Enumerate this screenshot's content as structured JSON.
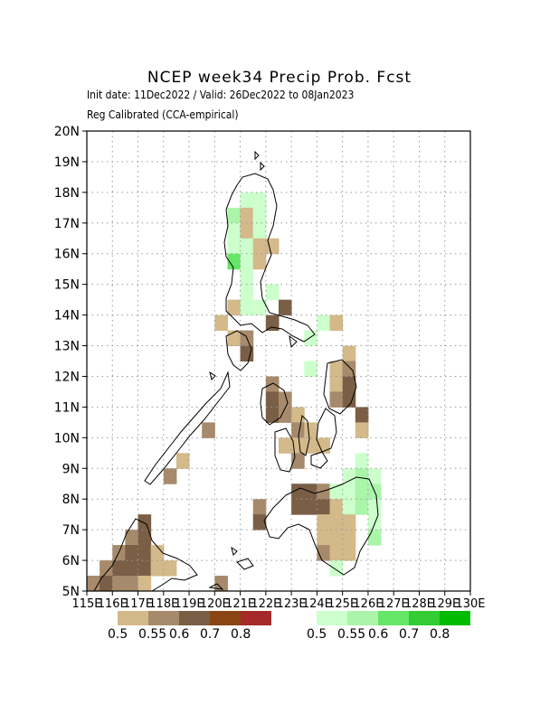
{
  "title": "NCEP week34 Precip Prob. Fcst",
  "subtitle1": "Init date: 11Dec2022 / Valid: 26Dec2022 to 08Jan2023",
  "subtitle2": "Reg Calibrated (CCA-empirical)",
  "chart_data": {
    "type": "heatmap",
    "title": "NCEP week34 Precip Prob. Fcst",
    "xlim": [
      115,
      130
    ],
    "ylim": [
      5,
      20
    ],
    "x_ticks": [
      "115E",
      "116E",
      "117E",
      "118E",
      "119E",
      "120E",
      "121E",
      "122E",
      "123E",
      "124E",
      "125E",
      "126E",
      "127E",
      "128E",
      "129E",
      "130E"
    ],
    "y_ticks": [
      "5N",
      "6N",
      "7N",
      "8N",
      "9N",
      "10N",
      "11N",
      "12N",
      "13N",
      "14N",
      "15N",
      "16N",
      "17N",
      "18N",
      "19N",
      "20N"
    ],
    "grid": true,
    "cell_size_deg": 0.5,
    "categories": {
      "d1": "below 0.5",
      "d2": "below 0.55",
      "d3": "below 0.6",
      "w1": "above 0.5",
      "w2": "above 0.55",
      "w3": "above 0.6"
    },
    "cells": [
      {
        "lon": 121.0,
        "lat": 17.5,
        "cat": "w1"
      },
      {
        "lon": 121.5,
        "lat": 17.5,
        "cat": "w1"
      },
      {
        "lon": 120.5,
        "lat": 17.0,
        "cat": "w2"
      },
      {
        "lon": 121.0,
        "lat": 17.0,
        "cat": "d1"
      },
      {
        "lon": 121.5,
        "lat": 17.0,
        "cat": "w1"
      },
      {
        "lon": 120.5,
        "lat": 16.5,
        "cat": "w1"
      },
      {
        "lon": 121.0,
        "lat": 16.5,
        "cat": "d1"
      },
      {
        "lon": 121.5,
        "lat": 16.5,
        "cat": "w1"
      },
      {
        "lon": 120.5,
        "lat": 16.0,
        "cat": "w1"
      },
      {
        "lon": 121.0,
        "lat": 16.0,
        "cat": "w1"
      },
      {
        "lon": 121.5,
        "lat": 16.0,
        "cat": "d1"
      },
      {
        "lon": 122.0,
        "lat": 16.0,
        "cat": "d1"
      },
      {
        "lon": 120.5,
        "lat": 15.5,
        "cat": "w3"
      },
      {
        "lon": 121.0,
        "lat": 15.5,
        "cat": "w1"
      },
      {
        "lon": 121.5,
        "lat": 15.5,
        "cat": "d1"
      },
      {
        "lon": 121.0,
        "lat": 15.0,
        "cat": "w1"
      },
      {
        "lon": 121.0,
        "lat": 14.5,
        "cat": "w1"
      },
      {
        "lon": 122.0,
        "lat": 14.5,
        "cat": "w1"
      },
      {
        "lon": 120.5,
        "lat": 14.0,
        "cat": "d1"
      },
      {
        "lon": 121.0,
        "lat": 14.0,
        "cat": "w1"
      },
      {
        "lon": 121.5,
        "lat": 14.0,
        "cat": "w1"
      },
      {
        "lon": 122.5,
        "lat": 14.0,
        "cat": "d3"
      },
      {
        "lon": 120.0,
        "lat": 13.5,
        "cat": "d1"
      },
      {
        "lon": 122.0,
        "lat": 13.5,
        "cat": "d3"
      },
      {
        "lon": 124.0,
        "lat": 13.5,
        "cat": "w1"
      },
      {
        "lon": 124.5,
        "lat": 13.5,
        "cat": "d1"
      },
      {
        "lon": 120.5,
        "lat": 13.0,
        "cat": "d1"
      },
      {
        "lon": 121.0,
        "lat": 13.0,
        "cat": "d2"
      },
      {
        "lon": 123.5,
        "lat": 13.0,
        "cat": "w1"
      },
      {
        "lon": 121.0,
        "lat": 12.5,
        "cat": "d3"
      },
      {
        "lon": 125.0,
        "lat": 12.5,
        "cat": "d1"
      },
      {
        "lon": 123.5,
        "lat": 12.0,
        "cat": "w1"
      },
      {
        "lon": 124.5,
        "lat": 12.0,
        "cat": "d1"
      },
      {
        "lon": 125.0,
        "lat": 12.0,
        "cat": "d2"
      },
      {
        "lon": 122.0,
        "lat": 11.5,
        "cat": "d2"
      },
      {
        "lon": 124.5,
        "lat": 11.5,
        "cat": "d1"
      },
      {
        "lon": 125.0,
        "lat": 11.5,
        "cat": "d3"
      },
      {
        "lon": 122.0,
        "lat": 11.0,
        "cat": "d3"
      },
      {
        "lon": 122.5,
        "lat": 11.0,
        "cat": "d2"
      },
      {
        "lon": 124.5,
        "lat": 11.0,
        "cat": "d2"
      },
      {
        "lon": 125.0,
        "lat": 11.0,
        "cat": "d3"
      },
      {
        "lon": 122.0,
        "lat": 10.5,
        "cat": "d3"
      },
      {
        "lon": 122.5,
        "lat": 10.5,
        "cat": "d2"
      },
      {
        "lon": 123.0,
        "lat": 10.5,
        "cat": "d1"
      },
      {
        "lon": 125.5,
        "lat": 10.5,
        "cat": "d3"
      },
      {
        "lon": 119.5,
        "lat": 10.0,
        "cat": "d2"
      },
      {
        "lon": 123.0,
        "lat": 10.0,
        "cat": "d2"
      },
      {
        "lon": 123.5,
        "lat": 10.0,
        "cat": "d1"
      },
      {
        "lon": 125.5,
        "lat": 10.0,
        "cat": "d1"
      },
      {
        "lon": 122.5,
        "lat": 9.5,
        "cat": "d1"
      },
      {
        "lon": 123.0,
        "lat": 9.5,
        "cat": "d1"
      },
      {
        "lon": 123.5,
        "lat": 9.5,
        "cat": "d1"
      },
      {
        "lon": 124.0,
        "lat": 9.5,
        "cat": "d1"
      },
      {
        "lon": 118.5,
        "lat": 9.0,
        "cat": "d1"
      },
      {
        "lon": 123.0,
        "lat": 9.0,
        "cat": "d2"
      },
      {
        "lon": 125.5,
        "lat": 9.0,
        "cat": "w1"
      },
      {
        "lon": 118.0,
        "lat": 8.5,
        "cat": "d2"
      },
      {
        "lon": 125.0,
        "lat": 8.5,
        "cat": "w1"
      },
      {
        "lon": 125.5,
        "lat": 8.5,
        "cat": "w2"
      },
      {
        "lon": 126.0,
        "lat": 8.5,
        "cat": "w1"
      },
      {
        "lon": 123.0,
        "lat": 8.0,
        "cat": "d3"
      },
      {
        "lon": 123.5,
        "lat": 8.0,
        "cat": "d3"
      },
      {
        "lon": 124.0,
        "lat": 8.0,
        "cat": "d2"
      },
      {
        "lon": 124.5,
        "lat": 8.0,
        "cat": "w1"
      },
      {
        "lon": 125.0,
        "lat": 8.0,
        "cat": "w1"
      },
      {
        "lon": 125.5,
        "lat": 8.0,
        "cat": "w2"
      },
      {
        "lon": 126.0,
        "lat": 8.0,
        "cat": "w2"
      },
      {
        "lon": 121.5,
        "lat": 7.5,
        "cat": "d2"
      },
      {
        "lon": 123.0,
        "lat": 7.5,
        "cat": "d3"
      },
      {
        "lon": 123.5,
        "lat": 7.5,
        "cat": "d3"
      },
      {
        "lon": 124.0,
        "lat": 7.5,
        "cat": "d3"
      },
      {
        "lon": 124.5,
        "lat": 7.5,
        "cat": "d1"
      },
      {
        "lon": 125.0,
        "lat": 7.5,
        "cat": "w1"
      },
      {
        "lon": 125.5,
        "lat": 7.5,
        "cat": "w2"
      },
      {
        "lon": 126.0,
        "lat": 7.5,
        "cat": "w1"
      },
      {
        "lon": 117.0,
        "lat": 7.0,
        "cat": "d3"
      },
      {
        "lon": 121.5,
        "lat": 7.0,
        "cat": "d3"
      },
      {
        "lon": 124.0,
        "lat": 7.0,
        "cat": "d1"
      },
      {
        "lon": 124.5,
        "lat": 7.0,
        "cat": "d1"
      },
      {
        "lon": 125.0,
        "lat": 7.0,
        "cat": "d1"
      },
      {
        "lon": 126.0,
        "lat": 7.0,
        "cat": "w1"
      },
      {
        "lon": 116.5,
        "lat": 6.5,
        "cat": "d2"
      },
      {
        "lon": 117.0,
        "lat": 6.5,
        "cat": "d3"
      },
      {
        "lon": 124.0,
        "lat": 6.5,
        "cat": "d1"
      },
      {
        "lon": 124.5,
        "lat": 6.5,
        "cat": "d1"
      },
      {
        "lon": 125.0,
        "lat": 6.5,
        "cat": "d1"
      },
      {
        "lon": 126.0,
        "lat": 6.5,
        "cat": "w2"
      },
      {
        "lon": 116.0,
        "lat": 6.0,
        "cat": "d2"
      },
      {
        "lon": 116.5,
        "lat": 6.0,
        "cat": "d3"
      },
      {
        "lon": 117.0,
        "lat": 6.0,
        "cat": "d3"
      },
      {
        "lon": 117.5,
        "lat": 6.0,
        "cat": "d1"
      },
      {
        "lon": 124.0,
        "lat": 6.0,
        "cat": "d2"
      },
      {
        "lon": 124.5,
        "lat": 6.0,
        "cat": "d1"
      },
      {
        "lon": 125.0,
        "lat": 6.0,
        "cat": "d1"
      },
      {
        "lon": 115.5,
        "lat": 5.5,
        "cat": "d2"
      },
      {
        "lon": 116.0,
        "lat": 5.5,
        "cat": "d3"
      },
      {
        "lon": 116.5,
        "lat": 5.5,
        "cat": "d3"
      },
      {
        "lon": 117.0,
        "lat": 5.5,
        "cat": "d3"
      },
      {
        "lon": 117.5,
        "lat": 5.5,
        "cat": "d1"
      },
      {
        "lon": 118.0,
        "lat": 5.5,
        "cat": "d1"
      },
      {
        "lon": 124.5,
        "lat": 5.5,
        "cat": "w1"
      },
      {
        "lon": 115.0,
        "lat": 5.0,
        "cat": "d2"
      },
      {
        "lon": 115.5,
        "lat": 5.0,
        "cat": "d3"
      },
      {
        "lon": 116.0,
        "lat": 5.0,
        "cat": "d2"
      },
      {
        "lon": 116.5,
        "lat": 5.0,
        "cat": "d2"
      },
      {
        "lon": 117.0,
        "lat": 5.0,
        "cat": "d1"
      },
      {
        "lon": 120.0,
        "lat": 5.0,
        "cat": "d2"
      }
    ]
  },
  "legend_below": {
    "colors": [
      "#d4b98a",
      "#a78a6b",
      "#7a5e45",
      "#8b4513",
      "#a52a2a"
    ],
    "labels": [
      "0.5",
      "0.55",
      "0.6",
      "0.7",
      "0.8"
    ]
  },
  "legend_above": {
    "colors": [
      "#ccffcc",
      "#aaf5aa",
      "#66e666",
      "#33cc33",
      "#00bb00"
    ],
    "labels": [
      "0.5",
      "0.55",
      "0.6",
      "0.7",
      "0.8"
    ]
  },
  "colors": {
    "d1": "#d4b98a",
    "d2": "#a78a6b",
    "d3": "#7a5e45",
    "w1": "#ccffcc",
    "w2": "#aaf5aa",
    "w3": "#66e666"
  }
}
